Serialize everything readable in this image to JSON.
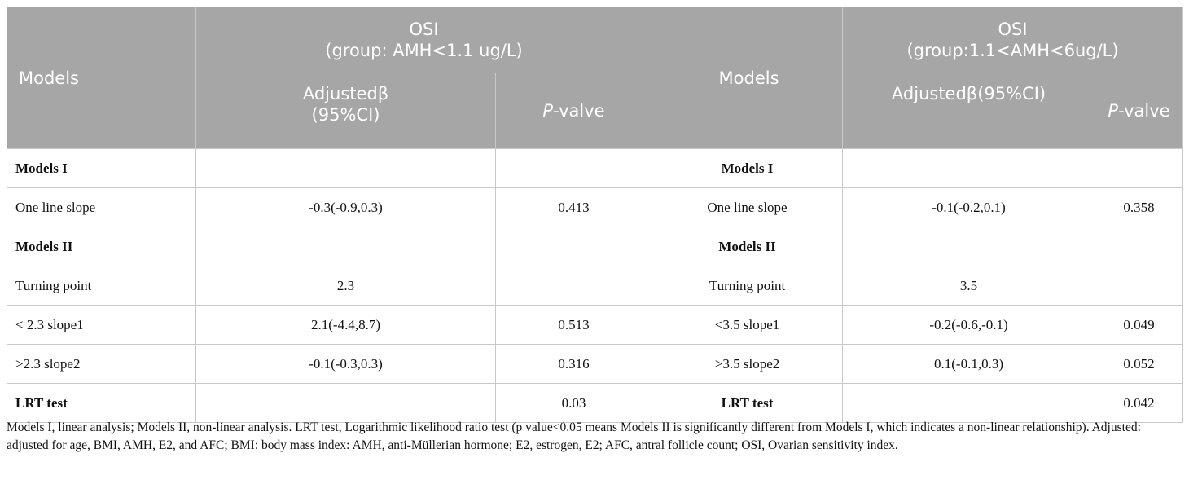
{
  "header": {
    "left": {
      "models": "Models",
      "osi_line1": "OSI",
      "osi_line2": "(group: AMH<1.1 ug/L)",
      "beta_line1": "Adjustedβ",
      "beta_line2": "(95%CI)",
      "p_italic": "P",
      "p_rest": "-valve"
    },
    "right": {
      "models": "Models",
      "osi_line1": "OSI",
      "osi_line2": "(group:1.1<AMH<6ug/L)",
      "beta": "Adjustedβ(95%CI)",
      "p_italic": "P",
      "p_rest": "-valve"
    }
  },
  "rows": [
    {
      "l_label": "Models I",
      "l_beta": "",
      "l_p": "",
      "r_label": "Models I",
      "r_beta": "",
      "r_p": "",
      "bold": true
    },
    {
      "l_label": "One line slope",
      "l_beta": "-0.3(-0.9,0.3)",
      "l_p": "0.413",
      "r_label": "One line slope",
      "r_beta": "-0.1(-0.2,0.1)",
      "r_p": "0.358",
      "bold": false
    },
    {
      "l_label": "Models II",
      "l_beta": "",
      "l_p": "",
      "r_label": "Models II",
      "r_beta": "",
      "r_p": "",
      "bold": true
    },
    {
      "l_label": "Turning point",
      "l_beta": "2.3",
      "l_p": "",
      "r_label": "Turning point",
      "r_beta": "3.5",
      "r_p": "",
      "bold": false
    },
    {
      "l_label": "< 2.3 slope1",
      "l_beta": "2.1(-4.4,8.7)",
      "l_p": "0.513",
      "r_label": "<3.5 slope1",
      "r_beta": "-0.2(-0.6,-0.1)",
      "r_p": "0.049",
      "bold": false
    },
    {
      "l_label": ">2.3 slope2",
      "l_beta": "-0.1(-0.3,0.3)",
      "l_p": "0.316",
      "r_label": ">3.5 slope2",
      "r_beta": "0.1(-0.1,0.3)",
      "r_p": "0.052",
      "bold": false
    },
    {
      "l_label": "LRT test",
      "l_beta": "",
      "l_p": "0.03",
      "r_label": "LRT test",
      "r_beta": "",
      "r_p": "0.042",
      "bold": true
    }
  ],
  "footnote": "Models I, linear analysis; Models II, non-linear analysis. LRT test, Logarithmic likelihood ratio test (p value<0.05 means Models II is significantly different from Models I, which indicates a non-linear relationship). Adjusted: adjusted for age, BMI, AMH, E2, and AFC; BMI: body mass index: AMH, anti-Müllerian hormone; E2, estrogen, E2; AFC, antral follicle count; OSI, Ovarian sensitivity index."
}
